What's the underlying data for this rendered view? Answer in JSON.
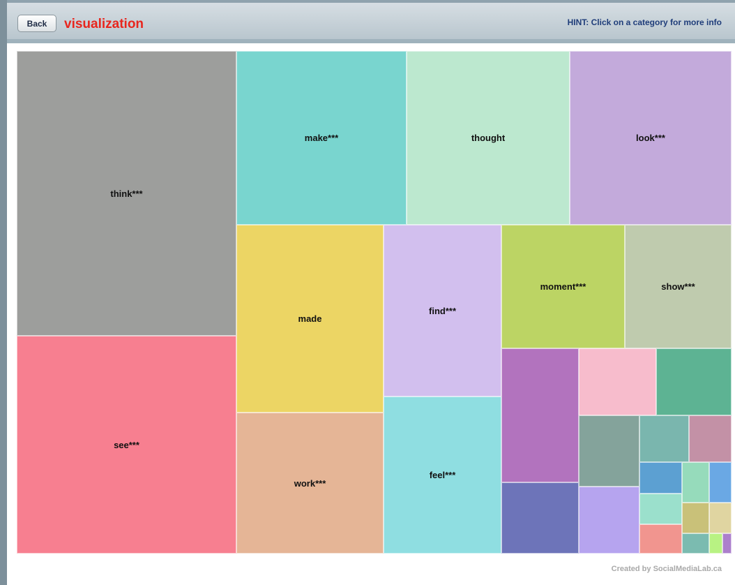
{
  "header": {
    "back_button": "Back",
    "title": "visualization",
    "hint": "HINT: Click on a category for more info"
  },
  "treemap": {
    "labels": [
      "think***",
      "see***",
      "make***",
      "thought",
      "look***",
      "made",
      "work***",
      "find***",
      "feel***",
      "moment***",
      "show***"
    ]
  },
  "footer": "Created by SocialMediaLab.ca"
}
